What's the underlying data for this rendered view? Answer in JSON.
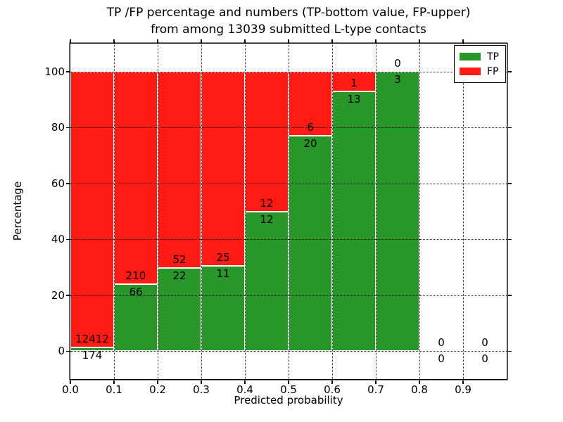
{
  "figure": {
    "background": "#ffffff",
    "frame_color": "#000000"
  },
  "chart_data": {
    "type": "bar",
    "stacked": true,
    "title": "TP /FP percentage and numbers (TP-bottom value, FP-upper)\nfrom among 13039 submitted L-type contacts",
    "title_lines": {
      "line1": "TP /FP percentage and numbers (TP-bottom value, FP-upper)",
      "line2": "from among 13039 submitted L-type contacts"
    },
    "total_contacts": 13039,
    "xlabel": "Predicted probability",
    "ylabel": "Percentage",
    "xlim": [
      0.0,
      1.0
    ],
    "ylim": [
      -10,
      110
    ],
    "grid": true,
    "grid_style": "dotted",
    "x_tick_values": [
      0.0,
      0.1,
      0.2,
      0.3,
      0.4,
      0.5,
      0.6,
      0.7,
      0.8,
      0.9
    ],
    "x_tick_labels": [
      "0.0",
      "0.1",
      "0.2",
      "0.3",
      "0.4",
      "0.5",
      "0.6",
      "0.7",
      "0.8",
      "0.9"
    ],
    "y_tick_values": [
      0,
      20,
      40,
      60,
      80,
      100
    ],
    "y_tick_labels": [
      "0",
      "20",
      "40",
      "60",
      "80",
      "100"
    ],
    "categories": [
      "0.0-0.1",
      "0.1-0.2",
      "0.2-0.3",
      "0.3-0.4",
      "0.4-0.5",
      "0.5-0.6",
      "0.6-0.7",
      "0.7-0.8",
      "0.8-0.9",
      "0.9-1.0"
    ],
    "bins": [
      {
        "range": [
          0.0,
          0.1
        ],
        "tp": 174,
        "fp": 12412,
        "tp_pct": 1.4,
        "fp_pct": 98.6
      },
      {
        "range": [
          0.1,
          0.2
        ],
        "tp": 66,
        "fp": 210,
        "tp_pct": 23.9,
        "fp_pct": 76.1
      },
      {
        "range": [
          0.2,
          0.3
        ],
        "tp": 22,
        "fp": 52,
        "tp_pct": 29.7,
        "fp_pct": 70.3
      },
      {
        "range": [
          0.3,
          0.4
        ],
        "tp": 11,
        "fp": 25,
        "tp_pct": 30.6,
        "fp_pct": 69.4
      },
      {
        "range": [
          0.4,
          0.5
        ],
        "tp": 12,
        "fp": 12,
        "tp_pct": 50.0,
        "fp_pct": 50.0
      },
      {
        "range": [
          0.5,
          0.6
        ],
        "tp": 20,
        "fp": 6,
        "tp_pct": 76.9,
        "fp_pct": 23.1
      },
      {
        "range": [
          0.6,
          0.7
        ],
        "tp": 13,
        "fp": 1,
        "tp_pct": 92.9,
        "fp_pct": 7.1
      },
      {
        "range": [
          0.7,
          0.8
        ],
        "tp": 3,
        "fp": 0,
        "tp_pct": 100.0,
        "fp_pct": 0.0
      },
      {
        "range": [
          0.8,
          0.9
        ],
        "tp": 0,
        "fp": 0,
        "tp_pct": 0.0,
        "fp_pct": 0.0
      },
      {
        "range": [
          0.9,
          1.0
        ],
        "tp": 0,
        "fp": 0,
        "tp_pct": 0.0,
        "fp_pct": 0.0
      }
    ],
    "series": [
      {
        "name": "TP",
        "color": "#289628",
        "counts": [
          174,
          66,
          22,
          11,
          12,
          20,
          13,
          3,
          0,
          0
        ]
      },
      {
        "name": "FP",
        "color": "#FF1A14",
        "counts": [
          12412,
          210,
          52,
          25,
          12,
          6,
          1,
          0,
          0,
          0
        ]
      }
    ],
    "legend": {
      "position": "upper right",
      "items": [
        {
          "label": "TP",
          "color": "#289628"
        },
        {
          "label": "FP",
          "color": "#FF1A14"
        }
      ]
    }
  }
}
